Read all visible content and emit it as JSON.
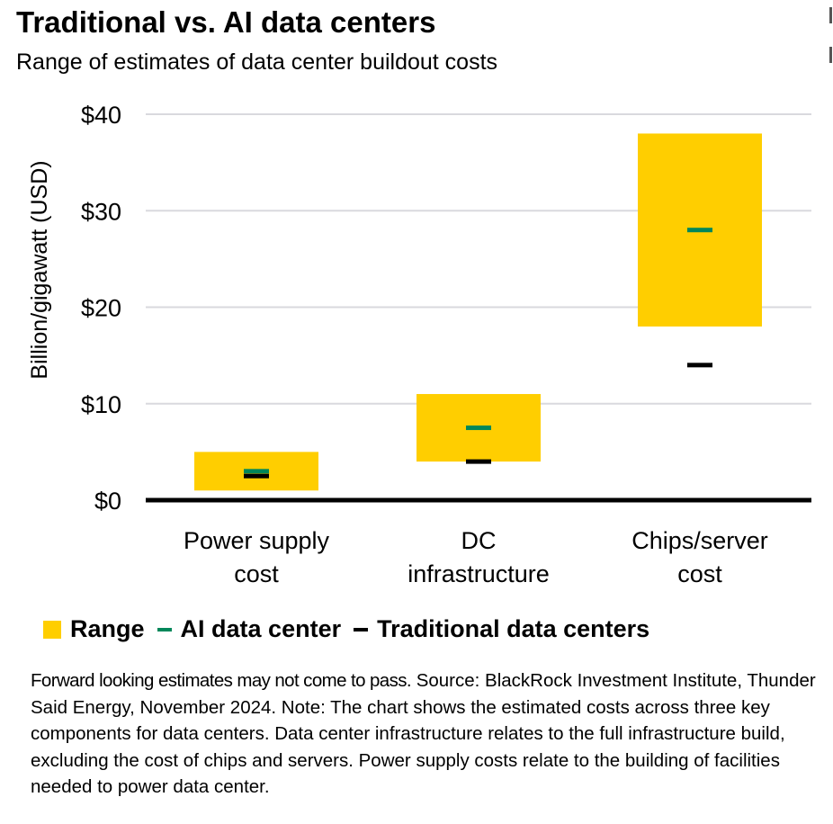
{
  "title": "Traditional vs. AI data centers",
  "subtitle": "Range of estimates of data center buildout costs",
  "colors": {
    "range": "#FFCE00",
    "ai": "#00875A",
    "traditional": "#000000",
    "grid": "#D9D9DE"
  },
  "chart_data": {
    "type": "bar",
    "title": "Traditional vs. AI data centers",
    "subtitle": "Range of estimates of data center buildout costs",
    "ylabel": "Billion/gigawatt (USD)",
    "xlabel": "",
    "ylim": [
      0,
      40
    ],
    "yticks": [
      0,
      10,
      20,
      30,
      40
    ],
    "ytick_labels": [
      "$0",
      "$10",
      "$20",
      "$30",
      "$40"
    ],
    "grid": true,
    "categories": [
      [
        "Power supply",
        "cost"
      ],
      [
        "DC",
        "infrastructure"
      ],
      [
        "Chips/server",
        "cost"
      ]
    ],
    "series": [
      {
        "name": "Range",
        "low": [
          1,
          4,
          18
        ],
        "high": [
          5,
          11,
          38
        ]
      },
      {
        "name": "AI data center",
        "values": [
          3,
          7.5,
          28
        ]
      },
      {
        "name": "Traditional data centers",
        "values": [
          2.5,
          4,
          14
        ]
      }
    ],
    "legend_placement": "bottom"
  },
  "legend": {
    "range": "Range",
    "ai": "AI data center",
    "traditional": "Traditional data centers"
  },
  "footnote": {
    "lead": "Forward looking estimates may not come to pass.",
    "body": " Source: BlackRock Investment Institute, Thunder Said Energy, November 2024. Note: The chart shows the estimated costs across three key components for data centers. Data center infrastructure relates to the full infrastructure build, excluding the cost of chips and servers. Power supply costs relate to the building of facilities needed to power data center."
  }
}
